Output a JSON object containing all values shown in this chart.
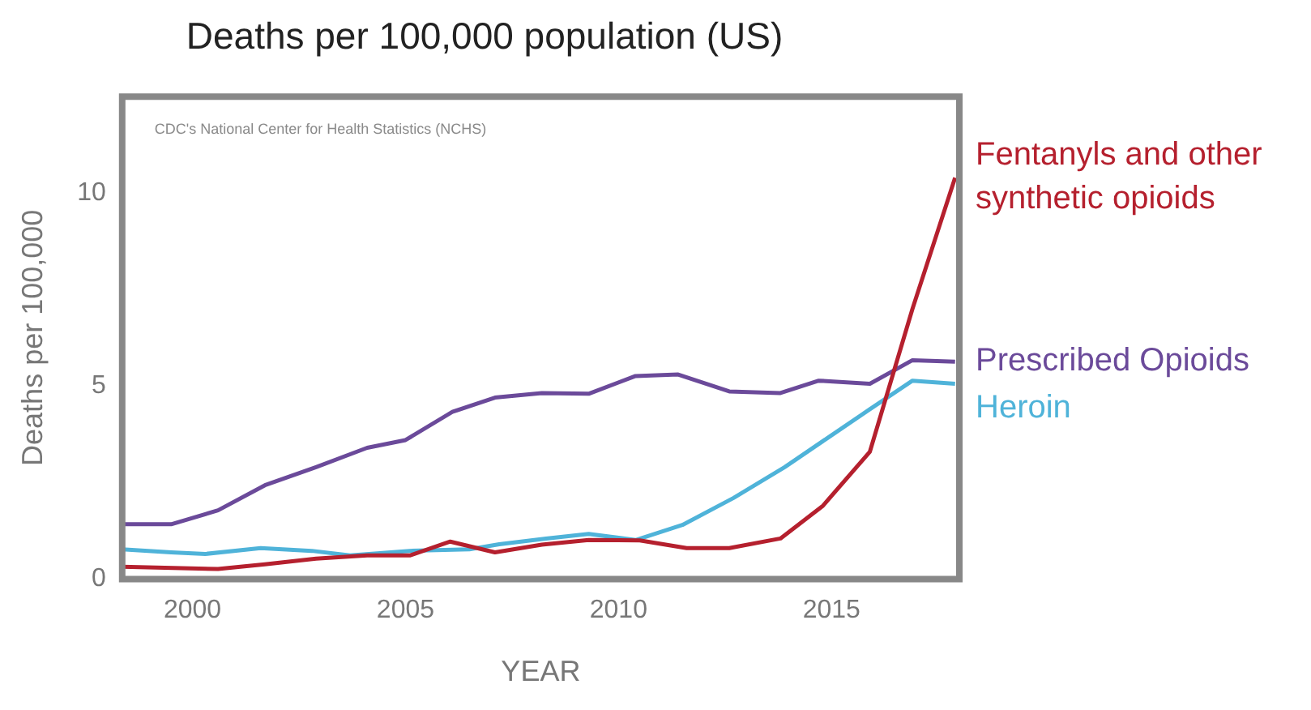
{
  "chart_data": {
    "type": "line",
    "title": "Deaths per 100,000 population (US)",
    "xlabel": "YEAR",
    "ylabel": "Deaths per 100,000",
    "xlim": [
      1998.35,
      2018
    ],
    "xticks": [
      2000,
      2005,
      2010,
      2015
    ],
    "ylim": [
      0,
      12.5
    ],
    "yticks": [
      0,
      5,
      10
    ],
    "grid": false,
    "legend": false,
    "marker": "none",
    "line_style": "solid",
    "annotations": [
      "CDC's National Center for Health Statistics (NCHS)"
    ],
    "series": [
      {
        "name": "Fentanyls and other synthetic opioids",
        "color": "#b5202e",
        "x": [
          1998.35,
          2000.6,
          2001.7,
          2002.9,
          2004.1,
          2005.1,
          2006.05,
          2007.1,
          2008.2,
          2009.3,
          2010.5,
          2011.6,
          2012.6,
          2013.8,
          2014.8,
          2015.9,
          2016.9,
          2017.9
        ],
        "values": [
          0.32,
          0.26,
          0.38,
          0.53,
          0.61,
          0.61,
          0.97,
          0.69,
          0.89,
          1.01,
          1.0,
          0.8,
          0.8,
          1.05,
          1.9,
          3.3,
          7.0,
          10.4
        ]
      },
      {
        "name": "Prescribed Opioids",
        "color": "#6b4a9a",
        "x": [
          1998.35,
          1999.5,
          2000.6,
          2001.7,
          2002.9,
          2004.1,
          2005.0,
          2006.1,
          2007.1,
          2008.2,
          2009.3,
          2010.4,
          2011.4,
          2012.6,
          2013.8,
          2014.7,
          2015.9,
          2016.9,
          2017.9
        ],
        "values": [
          1.42,
          1.42,
          1.78,
          2.43,
          2.9,
          3.4,
          3.6,
          4.33,
          4.7,
          4.82,
          4.8,
          5.26,
          5.3,
          4.86,
          4.82,
          5.14,
          5.06,
          5.67,
          5.63
        ]
      },
      {
        "name": "Heroin",
        "color": "#4fb3d9",
        "x": [
          1998.35,
          1999.5,
          2000.3,
          2001.6,
          2002.8,
          2003.7,
          2005.1,
          2006.5,
          2007.2,
          2008.3,
          2009.3,
          2010.4,
          2011.5,
          2012.7,
          2013.9,
          2014.9,
          2015.9,
          2016.9,
          2017.9
        ],
        "values": [
          0.77,
          0.69,
          0.65,
          0.8,
          0.73,
          0.61,
          0.73,
          0.77,
          0.9,
          1.05,
          1.17,
          1.01,
          1.4,
          2.1,
          2.9,
          3.65,
          4.4,
          5.14,
          5.06
        ]
      }
    ]
  }
}
